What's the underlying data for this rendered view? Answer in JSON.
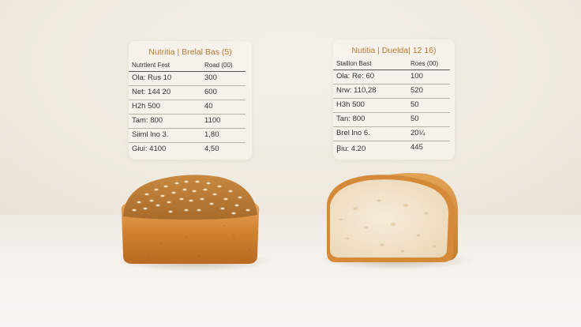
{
  "colors": {
    "title_accent": "#b8782e",
    "background": "#efe9e0",
    "crust": "#d58a3c",
    "crumb": "#f3e6cf"
  },
  "left_panel": {
    "title": "Nutritia | Brelal Bas (5)",
    "header": [
      "Nutrtlent Fest",
      "Road (00)"
    ],
    "rows": [
      [
        "Ola:  Rus  10",
        "300"
      ],
      [
        "Net:  144  20",
        "600"
      ],
      [
        "H2h  500",
        "40"
      ],
      [
        "Tam:  800",
        "1100"
      ],
      [
        "Siiml  lno  3.",
        "1,80"
      ],
      [
        "Giui:  4100",
        "4,50"
      ]
    ]
  },
  "right_panel": {
    "title": "Nutitia | Duelda| 12 16)",
    "header": [
      "Stalllon Bast",
      "Roes (00)"
    ],
    "rows": [
      [
        "Ola:  Re:  60",
        "100"
      ],
      [
        "Nrw:  110,28",
        "520"
      ],
      [
        "H3h  500",
        "50"
      ],
      [
        "Tan:  800",
        "50"
      ],
      [
        "Brel  lno  6.",
        "20¼"
      ],
      [
        "Ꞵiu:  4.20",
        "445"
      ]
    ]
  },
  "images": {
    "left_loaf": "seeded-whole-grain-bread-loaf",
    "right_loaf": "sliced-white-bread-loaf"
  }
}
